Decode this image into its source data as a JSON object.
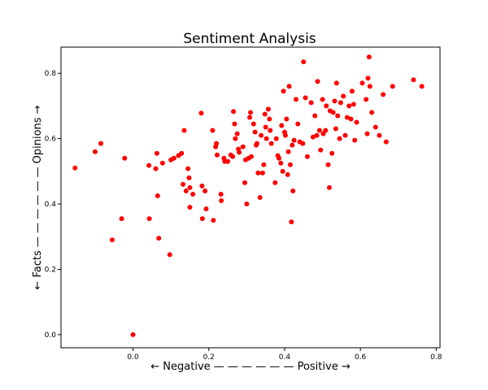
{
  "chart_data": {
    "type": "scatter",
    "title": "Sentiment Analysis",
    "xlabel": "← Negative — — — — — — Positive →",
    "ylabel": "← Facts — — — — — — Opinions →",
    "xlim": [
      -0.19,
      0.81
    ],
    "ylim": [
      -0.04,
      0.88
    ],
    "xticks": [
      0.0,
      0.2,
      0.4,
      0.6,
      0.8
    ],
    "xtick_labels": [
      "0.0",
      "0.2",
      "0.4",
      "0.6",
      "0.8"
    ],
    "yticks": [
      0.0,
      0.2,
      0.4,
      0.6,
      0.8
    ],
    "ytick_labels": [
      "0.0",
      "0.2",
      "0.4",
      "0.6",
      "0.8"
    ],
    "marker_color": "#ff0000",
    "grid": false,
    "points": [
      [
        -0.153,
        0.51
      ],
      [
        -0.1,
        0.56
      ],
      [
        -0.085,
        0.585
      ],
      [
        -0.055,
        0.29
      ],
      [
        -0.03,
        0.355
      ],
      [
        -0.022,
        0.54
      ],
      [
        0.0,
        0.0
      ],
      [
        0.042,
        0.518
      ],
      [
        0.043,
        0.355
      ],
      [
        0.06,
        0.508
      ],
      [
        0.063,
        0.555
      ],
      [
        0.065,
        0.425
      ],
      [
        0.068,
        0.295
      ],
      [
        0.078,
        0.525
      ],
      [
        0.097,
        0.245
      ],
      [
        0.1,
        0.535
      ],
      [
        0.108,
        0.54
      ],
      [
        0.12,
        0.548
      ],
      [
        0.128,
        0.555
      ],
      [
        0.132,
        0.46
      ],
      [
        0.135,
        0.625
      ],
      [
        0.14,
        0.44
      ],
      [
        0.145,
        0.508
      ],
      [
        0.148,
        0.48
      ],
      [
        0.15,
        0.45
      ],
      [
        0.15,
        0.39
      ],
      [
        0.158,
        0.43
      ],
      [
        0.18,
        0.678
      ],
      [
        0.182,
        0.455
      ],
      [
        0.183,
        0.355
      ],
      [
        0.19,
        0.44
      ],
      [
        0.193,
        0.385
      ],
      [
        0.21,
        0.625
      ],
      [
        0.212,
        0.35
      ],
      [
        0.218,
        0.575
      ],
      [
        0.22,
        0.585
      ],
      [
        0.222,
        0.55
      ],
      [
        0.232,
        0.43
      ],
      [
        0.233,
        0.41
      ],
      [
        0.24,
        0.54
      ],
      [
        0.242,
        0.53
      ],
      [
        0.25,
        0.53
      ],
      [
        0.258,
        0.55
      ],
      [
        0.263,
        0.545
      ],
      [
        0.265,
        0.683
      ],
      [
        0.268,
        0.645
      ],
      [
        0.27,
        0.6
      ],
      [
        0.275,
        0.615
      ],
      [
        0.278,
        0.568
      ],
      [
        0.28,
        0.558
      ],
      [
        0.29,
        0.575
      ],
      [
        0.295,
        0.465
      ],
      [
        0.297,
        0.535
      ],
      [
        0.3,
        0.4
      ],
      [
        0.305,
        0.54
      ],
      [
        0.308,
        0.665
      ],
      [
        0.31,
        0.68
      ],
      [
        0.312,
        0.545
      ],
      [
        0.318,
        0.645
      ],
      [
        0.322,
        0.62
      ],
      [
        0.325,
        0.58
      ],
      [
        0.327,
        0.585
      ],
      [
        0.33,
        0.495
      ],
      [
        0.335,
        0.42
      ],
      [
        0.338,
        0.61
      ],
      [
        0.342,
        0.495
      ],
      [
        0.345,
        0.52
      ],
      [
        0.348,
        0.675
      ],
      [
        0.35,
        0.635
      ],
      [
        0.352,
        0.6
      ],
      [
        0.357,
        0.69
      ],
      [
        0.36,
        0.66
      ],
      [
        0.362,
        0.625
      ],
      [
        0.365,
        0.585
      ],
      [
        0.375,
        0.465
      ],
      [
        0.378,
        0.6
      ],
      [
        0.382,
        0.548
      ],
      [
        0.385,
        0.54
      ],
      [
        0.39,
        0.525
      ],
      [
        0.392,
        0.64
      ],
      [
        0.395,
        0.5
      ],
      [
        0.397,
        0.745
      ],
      [
        0.4,
        0.62
      ],
      [
        0.402,
        0.61
      ],
      [
        0.405,
        0.66
      ],
      [
        0.408,
        0.49
      ],
      [
        0.41,
        0.56
      ],
      [
        0.412,
        0.76
      ],
      [
        0.415,
        0.52
      ],
      [
        0.418,
        0.345
      ],
      [
        0.42,
        0.58
      ],
      [
        0.422,
        0.44
      ],
      [
        0.425,
        0.595
      ],
      [
        0.43,
        0.72
      ],
      [
        0.435,
        0.645
      ],
      [
        0.44,
        0.59
      ],
      [
        0.448,
        0.585
      ],
      [
        0.45,
        0.835
      ],
      [
        0.455,
        0.725
      ],
      [
        0.46,
        0.545
      ],
      [
        0.47,
        0.71
      ],
      [
        0.475,
        0.605
      ],
      [
        0.48,
        0.67
      ],
      [
        0.485,
        0.61
      ],
      [
        0.487,
        0.775
      ],
      [
        0.492,
        0.625
      ],
      [
        0.495,
        0.565
      ],
      [
        0.5,
        0.72
      ],
      [
        0.502,
        0.615
      ],
      [
        0.508,
        0.625
      ],
      [
        0.51,
        0.7
      ],
      [
        0.515,
        0.52
      ],
      [
        0.518,
        0.45
      ],
      [
        0.52,
        0.685
      ],
      [
        0.525,
        0.555
      ],
      [
        0.528,
        0.68
      ],
      [
        0.532,
        0.715
      ],
      [
        0.535,
        0.63
      ],
      [
        0.537,
        0.77
      ],
      [
        0.54,
        0.67
      ],
      [
        0.545,
        0.6
      ],
      [
        0.548,
        0.71
      ],
      [
        0.555,
        0.73
      ],
      [
        0.56,
        0.61
      ],
      [
        0.565,
        0.665
      ],
      [
        0.57,
        0.7
      ],
      [
        0.575,
        0.66
      ],
      [
        0.578,
        0.745
      ],
      [
        0.582,
        0.705
      ],
      [
        0.585,
        0.595
      ],
      [
        0.59,
        0.65
      ],
      [
        0.605,
        0.77
      ],
      [
        0.615,
        0.72
      ],
      [
        0.618,
        0.615
      ],
      [
        0.62,
        0.785
      ],
      [
        0.623,
        0.85
      ],
      [
        0.625,
        0.76
      ],
      [
        0.63,
        0.68
      ],
      [
        0.64,
        0.635
      ],
      [
        0.65,
        0.61
      ],
      [
        0.66,
        0.735
      ],
      [
        0.668,
        0.59
      ],
      [
        0.685,
        0.76
      ],
      [
        0.74,
        0.78
      ],
      [
        0.762,
        0.76
      ]
    ]
  }
}
